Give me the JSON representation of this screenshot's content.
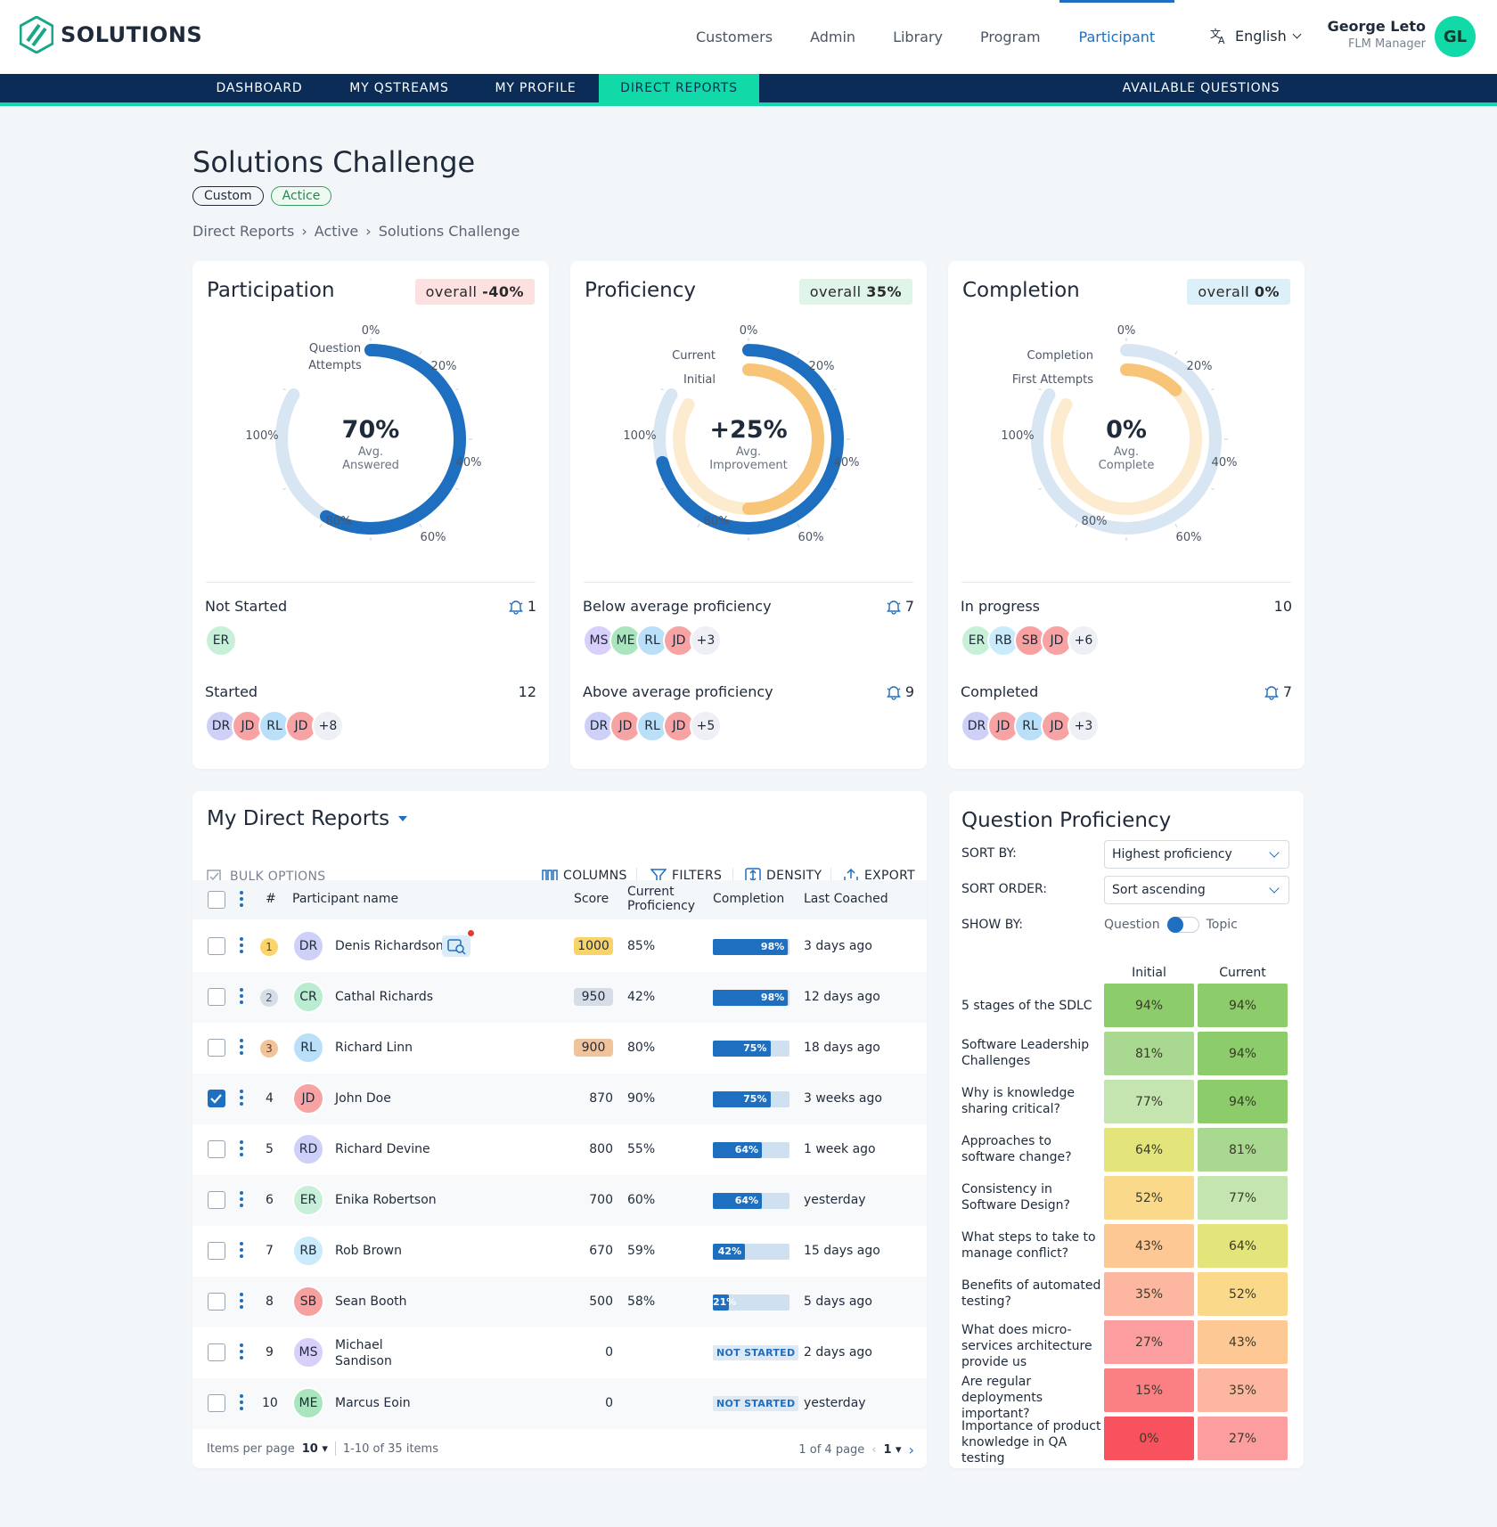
{
  "brand": {
    "logo_text": "SOLUTIONS"
  },
  "topnav": {
    "items": [
      "Customers",
      "Admin",
      "Library",
      "Program",
      "Participant"
    ],
    "active": "Participant"
  },
  "language": "English",
  "user": {
    "name": "George Leto",
    "role": "FLM Manager",
    "initials": "GL"
  },
  "subnav": {
    "items": [
      "DASHBOARD",
      "MY QSTREAMS",
      "MY PROFILE",
      "DIRECT REPORTS"
    ],
    "active": "DIRECT REPORTS",
    "right": "AVAILABLE QUESTIONS"
  },
  "page": {
    "title": "Solutions Challenge",
    "tags": [
      "Custom",
      "Actice"
    ],
    "breadcrumb": [
      "Direct Reports",
      "Active",
      "Solutions Challenge"
    ]
  },
  "cards": [
    {
      "title": "Participation",
      "overall_label": "overall",
      "overall_value": "-40%",
      "center_value": "70%",
      "center_sub1": "Avg.",
      "center_sub2": "Answered",
      "ring_labels": [
        "Question",
        "Attempts"
      ],
      "ticks": [
        "0%",
        "20%",
        "40%",
        "60%",
        "80%",
        "100%"
      ],
      "outer_fraction": 0.7,
      "inner_fraction": null,
      "s1_label": "Not Started",
      "s1_count": "1",
      "s1_avatars": [
        "ER"
      ],
      "s1_more": "",
      "s2_label": "Started",
      "s2_count": "12",
      "s2_avatars": [
        "DR",
        "JD",
        "RL",
        "JD"
      ],
      "s2_more": "+8"
    },
    {
      "title": "Proficiency",
      "overall_label": "overall",
      "overall_value": "35%",
      "center_value": "+25%",
      "center_sub1": "Avg.",
      "center_sub2": "Improvement",
      "ring_labels": [
        "Current",
        "Initial"
      ],
      "ticks": [
        "0%",
        "20%",
        "40%",
        "60%",
        "80%",
        "100%"
      ],
      "outer_fraction": 0.85,
      "inner_fraction": 0.6,
      "s1_label": "Below average proficiency",
      "s1_count": "7",
      "s1_avatars": [
        "MS",
        "ME",
        "RL",
        "JD"
      ],
      "s1_more": "+3",
      "s2_label": "Above average proficiency",
      "s2_count": "9",
      "s2_avatars": [
        "DR",
        "JD",
        "RL",
        "JD"
      ],
      "s2_more": "+5"
    },
    {
      "title": "Completion",
      "overall_label": "overall",
      "overall_value": "0%",
      "center_value": "0%",
      "center_sub1": "Avg.",
      "center_sub2": "Complete",
      "ring_labels": [
        "Completion",
        "First Attempts"
      ],
      "ticks": [
        "0%",
        "20%",
        "40%",
        "60%",
        "80%",
        "100%"
      ],
      "outer_fraction": 0,
      "inner_fraction": 0.15,
      "s1_label": "In progress",
      "s1_count": "10",
      "s1_avatars": [
        "ER",
        "RB",
        "SB",
        "JD"
      ],
      "s1_more": "+6",
      "s2_label": "Completed",
      "s2_count": "7",
      "s2_avatars": [
        "DR",
        "JD",
        "RL",
        "JD"
      ],
      "s2_more": "+3"
    }
  ],
  "reports": {
    "title": "My Direct Reports",
    "bulk": "BULK OPTIONS",
    "tools": [
      "COLUMNS",
      "FILTERS",
      "DENSITY",
      "EXPORT"
    ],
    "headers": {
      "num": "#",
      "name": "Participant name",
      "score": "Score",
      "prof1": "Current",
      "prof2": "Proficiency",
      "completion": "Completion",
      "coached": "Last Coached"
    },
    "rows": [
      {
        "n": "1",
        "initials": "DR",
        "name": "Denis Richardson",
        "score": "1000",
        "prof": "85%",
        "completion": 98,
        "comp_label": "98%",
        "coached": "3 days ago",
        "checked": false
      },
      {
        "n": "2",
        "initials": "CR",
        "name": "Cathal Richards",
        "score": "950",
        "prof": "42%",
        "completion": 98,
        "comp_label": "98%",
        "coached": "12 days ago",
        "checked": false
      },
      {
        "n": "3",
        "initials": "RL",
        "name": "Richard Linn",
        "score": "900",
        "prof": "80%",
        "completion": 75,
        "comp_label": "75%",
        "coached": "18 days ago",
        "checked": false
      },
      {
        "n": "4",
        "initials": "JD",
        "name": "John Doe",
        "score": "870",
        "prof": "90%",
        "completion": 75,
        "comp_label": "75%",
        "coached": "3 weeks ago",
        "checked": true
      },
      {
        "n": "5",
        "initials": "RD",
        "name": "Richard Devine",
        "score": "800",
        "prof": "55%",
        "completion": 64,
        "comp_label": "64%",
        "coached": "1 week ago",
        "checked": false
      },
      {
        "n": "6",
        "initials": "ER",
        "name": "Enika Robertson",
        "score": "700",
        "prof": "60%",
        "completion": 64,
        "comp_label": "64%",
        "coached": "yesterday",
        "checked": false
      },
      {
        "n": "7",
        "initials": "RB",
        "name": "Rob Brown",
        "score": "670",
        "prof": "59%",
        "completion": 42,
        "comp_label": "42%",
        "coached": "15 days ago",
        "checked": false
      },
      {
        "n": "8",
        "initials": "SB",
        "name": "Sean Booth",
        "score": "500",
        "prof": "58%",
        "completion": 21,
        "comp_label": "21%",
        "coached": "5 days ago",
        "checked": false
      },
      {
        "n": "9",
        "initials": "MS",
        "name": "Michael",
        "name2": "Sandison",
        "score": "0",
        "prof": "",
        "completion": null,
        "comp_label": "NOT STARTED",
        "coached": "2 days ago",
        "checked": false
      },
      {
        "n": "10",
        "initials": "ME",
        "name": "Marcus Eoin",
        "score": "0",
        "prof": "",
        "completion": null,
        "comp_label": "NOT STARTED",
        "coached": "yesterday",
        "checked": false
      }
    ],
    "footer": {
      "per_page_label": "Items per page",
      "per_page": "10",
      "range": "1-10 of 35 items",
      "page_info": "1 of 4 page",
      "page": "1"
    }
  },
  "question_proficiency": {
    "title": "Question Proficiency",
    "sort_by_label": "SORT BY:",
    "sort_by": "Highest proficiency",
    "sort_order_label": "SORT ORDER:",
    "sort_order": "Sort ascending",
    "show_by_label": "SHOW BY:",
    "show_by_left": "Question",
    "show_by_right": "Topic",
    "col_initial": "Initial",
    "col_current": "Current",
    "rows": [
      {
        "q": "5 stages of the SDLC",
        "initial": "94%",
        "current": "94%",
        "ci": "#8ccc6a",
        "cc": "#8ccc6a"
      },
      {
        "q": "Software Leadership Challenges",
        "initial": "81%",
        "current": "94%",
        "ci": "#a9d990",
        "cc": "#8ccc6a"
      },
      {
        "q": "Why is knowledge sharing critical?",
        "initial": "77%",
        "current": "94%",
        "ci": "#c4e5b0",
        "cc": "#8ccc6a"
      },
      {
        "q": "Approaches to software change?",
        "initial": "64%",
        "current": "81%",
        "ci": "#e3e47a",
        "cc": "#a9d990"
      },
      {
        "q": "Consistency in Software Design?",
        "initial": "52%",
        "current": "77%",
        "ci": "#fbd98a",
        "cc": "#c4e5b0"
      },
      {
        "q": "What steps to take to manage conflict?",
        "initial": "43%",
        "current": "64%",
        "ci": "#fdc894",
        "cc": "#e3e47a"
      },
      {
        "q": "Benefits of automated testing?",
        "initial": "35%",
        "current": "52%",
        "ci": "#fdb7a0",
        "cc": "#fbd98a"
      },
      {
        "q": "What does micro-services architecture provide us",
        "initial": "27%",
        "current": "43%",
        "ci": "#fc9da0",
        "cc": "#fdc894"
      },
      {
        "q": "Are regular deployments important?",
        "initial": "15%",
        "current": "35%",
        "ci": "#fb8083",
        "cc": "#fdb7a0"
      },
      {
        "q": "Importance of product knowledge in QA testing",
        "initial": "0%",
        "current": "27%",
        "ci": "#f7525d",
        "cc": "#fc9da0"
      }
    ]
  },
  "colors": {
    "primary": "#1e6fc0",
    "accent": "#12d9a8",
    "navy": "#0b2c56",
    "gold": "#f6c344"
  }
}
